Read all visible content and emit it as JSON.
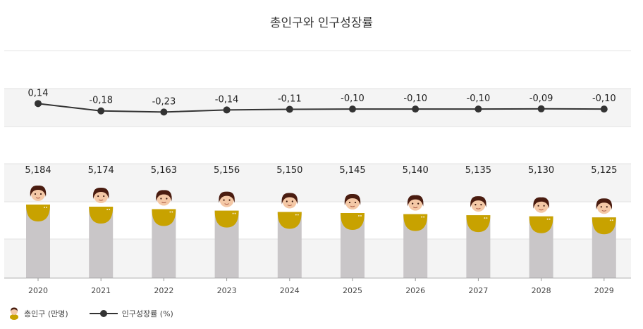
{
  "chart_data": {
    "type": "bar+line",
    "title": "총인구와 인구성장률",
    "categories": [
      "2020",
      "2021",
      "2022",
      "2023",
      "2024",
      "2025",
      "2026",
      "2027",
      "2028",
      "2029"
    ],
    "series": [
      {
        "name": "총인구 (만명)",
        "type": "bar",
        "values": [
          5184,
          5174,
          5163,
          5156,
          5150,
          5145,
          5140,
          5135,
          5130,
          5125
        ],
        "labels": [
          "5,184",
          "5,174",
          "5,163",
          "5,156",
          "5,150",
          "5,145",
          "5,140",
          "5,135",
          "5,130",
          "5,125"
        ],
        "color": "#c9c6c8",
        "accent_color": "#c8a200"
      },
      {
        "name": "인구성장률 (%)",
        "type": "line",
        "values": [
          0.14,
          -0.18,
          -0.23,
          -0.14,
          -0.11,
          -0.1,
          -0.1,
          -0.1,
          -0.09,
          -0.1
        ],
        "labels": [
          "0,14",
          "-0,18",
          "-0,23",
          "-0,14",
          "-0,11",
          "-0,10",
          "-0,10",
          "-0,10",
          "-0,09",
          "-0,10"
        ],
        "color": "#333333"
      }
    ],
    "grid": true,
    "legend_position": "bottom-left"
  }
}
